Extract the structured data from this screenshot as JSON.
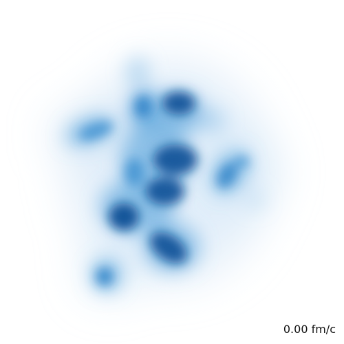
{
  "time_readout": "0.00 fm/c",
  "colors": {
    "background": "#ffffff",
    "density_light": "#9ecbeb",
    "density_mid": "#3c8fd0",
    "density_dark": "#0b4f96"
  }
}
